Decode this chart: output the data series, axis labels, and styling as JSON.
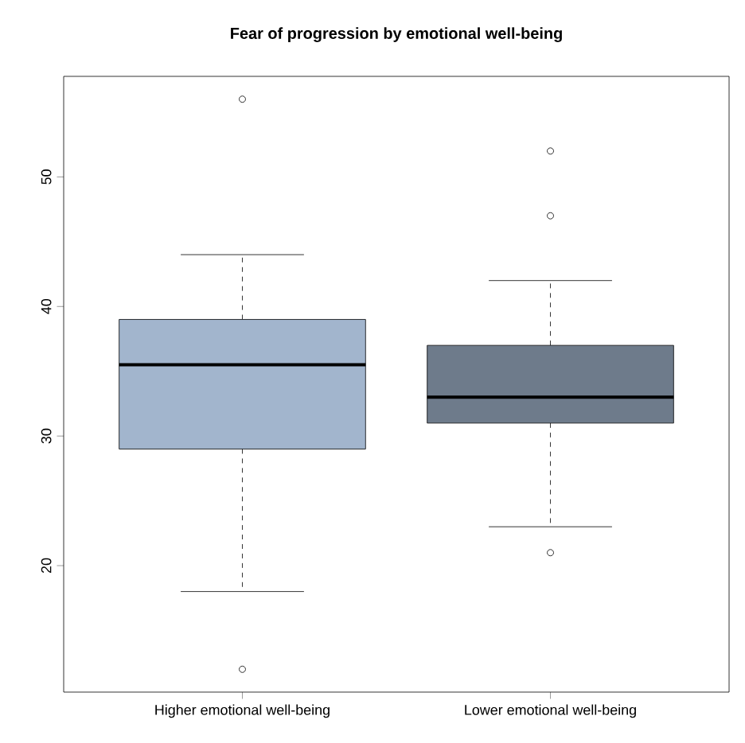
{
  "chart_data": {
    "type": "box",
    "title": "Fear of progression by emotional well-being",
    "categories": [
      "Higher emotional well-being",
      "Lower emotional well-being"
    ],
    "colors": [
      "#a2b5cd",
      "#6e7b8b"
    ],
    "boxes": [
      {
        "low": 18,
        "q1": 29,
        "median": 35.5,
        "q3": 39,
        "high": 44,
        "outliers": [
          56,
          12
        ]
      },
      {
        "low": 23,
        "q1": 31,
        "median": 33,
        "q3": 37,
        "high": 42,
        "outliers": [
          52,
          47,
          21
        ]
      }
    ],
    "ylim": [
      10.24,
      57.76
    ],
    "yticks": [
      20,
      30,
      40,
      50
    ]
  }
}
